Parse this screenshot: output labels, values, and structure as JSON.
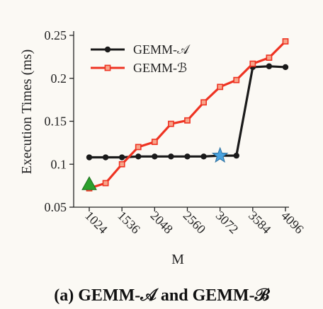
{
  "chart_data": {
    "type": "line",
    "title": "",
    "caption": "(a) GEMM-𝒜 and GEMM-ℬ",
    "xlabel": "M",
    "ylabel": "Execution Times (ms)",
    "x": [
      1024,
      1280,
      1536,
      1792,
      2048,
      2304,
      2560,
      2816,
      3072,
      3328,
      3584,
      3840,
      4096
    ],
    "xticks": [
      1024,
      1536,
      2048,
      2560,
      3072,
      3584,
      4096
    ],
    "yticks": [
      0.05,
      0.1,
      0.15,
      0.2,
      0.25
    ],
    "yticklabels": [
      "0.05",
      "0.1",
      "0.15",
      "0.2",
      "0.25"
    ],
    "ylim": [
      0.05,
      0.25
    ],
    "legend_position": "top-left",
    "colors": {
      "seriesA": "#1a1a1a",
      "seriesB": "#ee3322",
      "triangle": "#2ca02c",
      "star": "#4aa3df",
      "axis": "#222222",
      "background": "#fbf9f4"
    },
    "series": [
      {
        "name": "GEMM-𝒜",
        "marker": "circle",
        "values": [
          0.108,
          0.108,
          0.108,
          0.109,
          0.109,
          0.109,
          0.109,
          0.109,
          0.11,
          0.11,
          0.213,
          0.214,
          0.213
        ]
      },
      {
        "name": "GEMM-ℬ",
        "marker": "square",
        "values": [
          0.072,
          0.078,
          0.1,
          0.12,
          0.126,
          0.147,
          0.151,
          0.172,
          0.19,
          0.198,
          0.217,
          0.224,
          0.243
        ]
      }
    ],
    "annotations": [
      {
        "type": "triangle",
        "x": 1024,
        "y": 0.077,
        "color": "green"
      },
      {
        "type": "star",
        "x": 3072,
        "y": 0.11,
        "color": "blue"
      }
    ]
  }
}
